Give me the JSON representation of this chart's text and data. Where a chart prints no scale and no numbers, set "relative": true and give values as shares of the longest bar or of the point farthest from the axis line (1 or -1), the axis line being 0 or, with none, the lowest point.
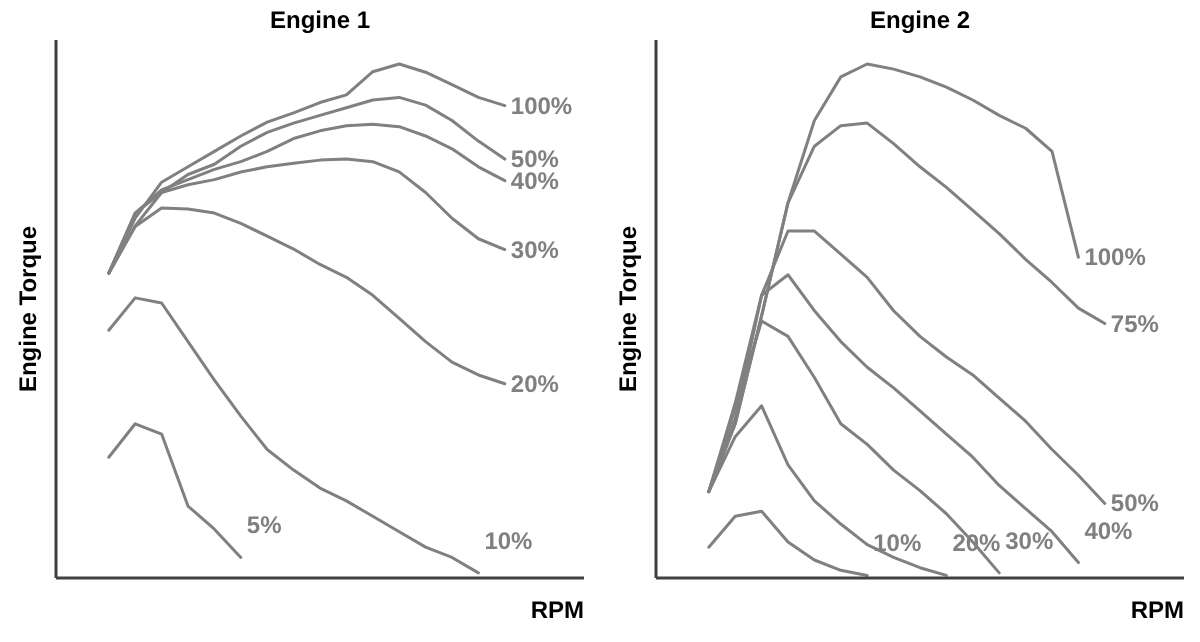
{
  "chart_data": [
    {
      "type": "line",
      "title": "Engine 1",
      "xlabel": "RPM",
      "ylabel": "Engine Torque",
      "relative": true,
      "legend": false,
      "grid": false,
      "marker": "none",
      "line_style": "solid",
      "categories": [
        null,
        null,
        null,
        null,
        null,
        null,
        null,
        null,
        null,
        null,
        null,
        null,
        null,
        null,
        null,
        null
      ],
      "series": [
        {
          "name": "100%",
          "color": "#808080",
          "values": [
            0.593,
            0.7,
            0.77,
            0.8,
            0.83,
            0.86,
            0.887,
            0.905,
            0.925,
            0.94,
            0.985,
            1.0,
            0.984,
            0.96,
            0.935,
            0.919
          ]
        },
        {
          "name": "50%",
          "color": "#808080",
          "values": [
            0.593,
            0.685,
            0.75,
            0.785,
            0.805,
            0.84,
            0.867,
            0.885,
            0.9,
            0.915,
            0.93,
            0.935,
            0.92,
            0.89,
            0.85,
            0.815
          ]
        },
        {
          "name": "40%",
          "color": "#808080",
          "values": [
            0.593,
            0.71,
            0.755,
            0.775,
            0.795,
            0.81,
            0.83,
            0.855,
            0.87,
            0.88,
            0.883,
            0.878,
            0.86,
            0.835,
            0.8,
            0.773
          ]
        },
        {
          "name": "30%",
          "color": "#808080",
          "values": [
            0.593,
            0.71,
            0.75,
            0.765,
            0.775,
            0.79,
            0.8,
            0.807,
            0.813,
            0.815,
            0.81,
            0.79,
            0.75,
            0.7,
            0.66,
            0.639
          ]
        },
        {
          "name": "20%",
          "color": "#808080",
          "values": [
            0.593,
            0.684,
            0.72,
            0.718,
            0.71,
            0.69,
            0.665,
            0.64,
            0.61,
            0.585,
            0.55,
            0.505,
            0.46,
            0.42,
            0.395,
            0.378
          ]
        },
        {
          "name": "10%",
          "color": "#808080",
          "values": [
            0.482,
            0.545,
            0.535,
            0.46,
            0.385,
            0.315,
            0.25,
            0.21,
            0.175,
            0.15,
            0.12,
            0.09,
            0.06,
            0.04,
            0.01,
            null
          ]
        },
        {
          "name": "5%",
          "color": "#808080",
          "values": [
            0.235,
            0.3,
            0.28,
            0.14,
            0.095,
            0.04,
            null,
            null,
            null,
            null,
            null,
            null,
            null,
            null,
            null,
            null
          ]
        }
      ]
    },
    {
      "type": "line",
      "title": "Engine 2",
      "xlabel": "RPM",
      "ylabel": "Engine Torque",
      "relative": true,
      "legend": false,
      "grid": false,
      "marker": "none",
      "line_style": "solid",
      "categories": [
        null,
        null,
        null,
        null,
        null,
        null,
        null,
        null,
        null,
        null,
        null,
        null,
        null,
        null,
        null,
        null
      ],
      "series": [
        {
          "name": "100%",
          "color": "#808080",
          "values": [
            0.168,
            0.3,
            0.51,
            0.73,
            0.89,
            0.975,
            1.0,
            0.99,
            0.975,
            0.955,
            0.93,
            0.9,
            0.875,
            0.83,
            0.624,
            null
          ]
        },
        {
          "name": "75%",
          "color": "#808080",
          "values": [
            0.168,
            0.3,
            0.51,
            0.73,
            0.84,
            0.88,
            0.885,
            0.845,
            0.8,
            0.76,
            0.715,
            0.67,
            0.62,
            0.575,
            0.525,
            0.495
          ]
        },
        {
          "name": "50%",
          "color": "#808080",
          "values": [
            0.168,
            0.31,
            0.55,
            0.675,
            0.675,
            0.63,
            0.585,
            0.52,
            0.47,
            0.43,
            0.395,
            0.35,
            0.305,
            0.25,
            0.2,
            0.145
          ]
        },
        {
          "name": "40%",
          "color": "#808080",
          "values": [
            0.168,
            0.34,
            0.55,
            0.59,
            0.52,
            0.46,
            0.41,
            0.37,
            0.325,
            0.28,
            0.235,
            0.18,
            0.135,
            0.09,
            0.03,
            null
          ]
        },
        {
          "name": "30%",
          "color": "#808080",
          "values": [
            0.168,
            0.33,
            0.5,
            0.47,
            0.39,
            0.3,
            0.26,
            0.21,
            0.17,
            0.125,
            0.07,
            0.01,
            null,
            null,
            null,
            null
          ]
        },
        {
          "name": "20%",
          "color": "#808080",
          "values": [
            0.168,
            0.275,
            0.335,
            0.22,
            0.15,
            0.105,
            0.065,
            0.04,
            0.02,
            0.005,
            null,
            null,
            null,
            null,
            null,
            null
          ]
        },
        {
          "name": "10%",
          "color": "#808080",
          "values": [
            0.06,
            0.12,
            0.13,
            0.07,
            0.035,
            0.015,
            0.005,
            null,
            null,
            null,
            null,
            null,
            null,
            null,
            null,
            null
          ]
        }
      ]
    }
  ]
}
